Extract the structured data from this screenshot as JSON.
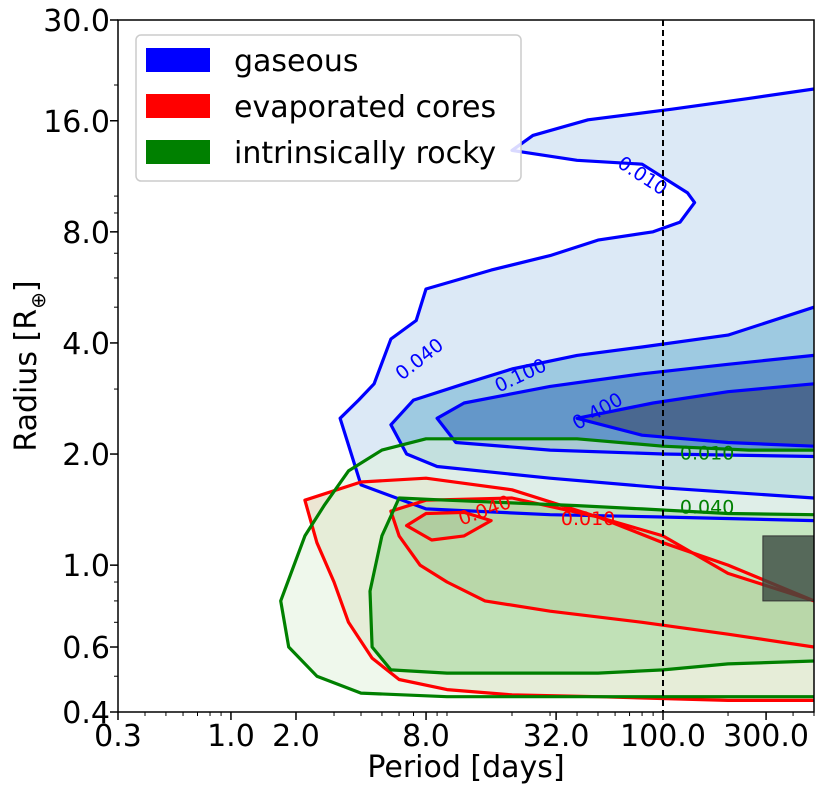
{
  "chart_data": {
    "type": "contour",
    "title": "",
    "xlabel": "Period [days]",
    "ylabel": "Radius [R",
    "ylabel_subscript": "⊕",
    "ylabel_close": "]",
    "xscale": "log",
    "yscale": "log",
    "xlim": [
      0.3,
      500.0
    ],
    "ylim": [
      0.4,
      30.0
    ],
    "xticks": [
      {
        "value": 0.3,
        "label": "0.3"
      },
      {
        "value": 1.0,
        "label": "1.0"
      },
      {
        "value": 2.0,
        "label": "2.0"
      },
      {
        "value": 8.0,
        "label": "8.0"
      },
      {
        "value": 32.0,
        "label": "32.0"
      },
      {
        "value": 100.0,
        "label": "100.0"
      },
      {
        "value": 300.0,
        "label": "300.0"
      }
    ],
    "yticks": [
      {
        "value": 0.4,
        "label": "0.4"
      },
      {
        "value": 0.6,
        "label": "0.6"
      },
      {
        "value": 1.0,
        "label": "1.0"
      },
      {
        "value": 2.0,
        "label": "2.0"
      },
      {
        "value": 4.0,
        "label": "4.0"
      },
      {
        "value": 8.0,
        "label": "8.0"
      },
      {
        "value": 16.0,
        "label": "16.0"
      },
      {
        "value": 30.0,
        "label": "30.0"
      }
    ],
    "vline": {
      "x": 100.0,
      "style": "dashed"
    },
    "shaded_box": {
      "x": [
        290,
        500
      ],
      "y": [
        0.8,
        1.2
      ]
    },
    "legend": {
      "position": "top-left",
      "entries": [
        {
          "label": "gaseous",
          "color": "#0000ff"
        },
        {
          "label": "evaporated cores",
          "color": "#ff0000"
        },
        {
          "label": "intrinsically rocky",
          "color": "#008000"
        }
      ]
    },
    "levels": [
      0.01,
      0.04,
      0.1,
      0.4
    ],
    "series": [
      {
        "name": "gaseous",
        "line_color": "#0000ff",
        "fills": [
          "#dce9f6",
          "#9ecae1",
          "#6497c9",
          "#4a6890"
        ],
        "contours": [
          {
            "level": "0.010",
            "label_x": 80,
            "label_y": 11.3,
            "label_angle": 33,
            "points": [
              [
                500,
                19.5
              ],
              [
                250,
                18.4
              ],
              [
                110,
                17.2
              ],
              [
                45,
                16.1
              ],
              [
                25,
                14.6
              ],
              [
                20,
                13.3
              ],
              [
                40,
                12.5
              ],
              [
                80,
                12.2
              ],
              [
                130,
                10.2
              ],
              [
                140,
                9.6
              ],
              [
                120,
                8.5
              ],
              [
                90,
                8.0
              ],
              [
                50,
                7.6
              ],
              [
                30,
                6.9
              ],
              [
                16,
                6.3
              ],
              [
                8,
                5.6
              ],
              [
                7.2,
                4.6
              ],
              [
                5.5,
                4.1
              ],
              [
                4.6,
                3.1
              ],
              [
                3.9,
                2.8
              ],
              [
                3.2,
                2.5
              ],
              [
                4.0,
                1.65
              ],
              [
                8,
                1.42
              ],
              [
                30,
                1.37
              ],
              [
                100,
                1.35
              ],
              [
                500,
                1.32
              ]
            ]
          },
          {
            "level": "0.040",
            "label_x": 7.5,
            "label_y": 3.6,
            "label_angle": -38,
            "points": [
              [
                500,
                5.0
              ],
              [
                200,
                4.2
              ],
              [
                80,
                3.9
              ],
              [
                40,
                3.7
              ],
              [
                20,
                3.4
              ],
              [
                12,
                3.1
              ],
              [
                7,
                2.8
              ],
              [
                5.5,
                2.4
              ],
              [
                6.5,
                2.0
              ],
              [
                9,
                1.85
              ],
              [
                30,
                1.72
              ],
              [
                100,
                1.62
              ],
              [
                500,
                1.52
              ]
            ]
          },
          {
            "level": "0.100",
            "label_x": 22,
            "label_y": 3.25,
            "label_angle": -25,
            "points": [
              [
                500,
                3.7
              ],
              [
                200,
                3.5
              ],
              [
                80,
                3.3
              ],
              [
                30,
                3.05
              ],
              [
                12,
                2.75
              ],
              [
                9,
                2.5
              ],
              [
                11,
                2.15
              ],
              [
                30,
                2.05
              ],
              [
                100,
                2.0
              ],
              [
                500,
                1.97
              ]
            ]
          },
          {
            "level": "0.400",
            "label_x": 50,
            "label_y": 2.6,
            "label_angle": -30,
            "points": [
              [
                500,
                3.1
              ],
              [
                200,
                2.95
              ],
              [
                90,
                2.75
              ],
              [
                40,
                2.5
              ],
              [
                80,
                2.25
              ],
              [
                200,
                2.15
              ],
              [
                500,
                2.1
              ]
            ]
          }
        ]
      },
      {
        "name": "evaporated cores",
        "line_color": "#ff0000",
        "fills": [
          "#e6dec4",
          "#b8a676",
          "#8b7456"
        ],
        "contours": [
          {
            "level": "0.010",
            "label_x": 45,
            "label_y": 1.33,
            "label_angle": 0,
            "points": [
              [
                500,
                0.43
              ],
              [
                200,
                0.43
              ],
              [
                50,
                0.44
              ],
              [
                20,
                0.445
              ],
              [
                10,
                0.46
              ],
              [
                6,
                0.49
              ],
              [
                4.5,
                0.56
              ],
              [
                3.5,
                0.7
              ],
              [
                3,
                0.9
              ],
              [
                2.5,
                1.15
              ],
              [
                2.2,
                1.5
              ],
              [
                4,
                1.68
              ],
              [
                8,
                1.72
              ],
              [
                20,
                1.6
              ],
              [
                50,
                1.35
              ],
              [
                100,
                1.15
              ],
              [
                200,
                1.0
              ],
              [
                500,
                0.8
              ]
            ]
          },
          {
            "level": "0.040",
            "label_x": 15,
            "label_y": 1.4,
            "label_angle": -20,
            "points": [
              [
                500,
                0.6
              ],
              [
                200,
                0.65
              ],
              [
                80,
                0.7
              ],
              [
                30,
                0.75
              ],
              [
                15,
                0.8
              ],
              [
                10,
                0.9
              ],
              [
                7.5,
                1.0
              ],
              [
                6,
                1.2
              ],
              [
                5.5,
                1.4
              ],
              [
                8,
                1.5
              ],
              [
                20,
                1.52
              ],
              [
                50,
                1.35
              ],
              [
                100,
                1.2
              ],
              [
                200,
                0.95
              ],
              [
                500,
                0.8
              ]
            ]
          },
          {
            "level": "0.100",
            "label_x": 0,
            "label_y": 0,
            "label_angle": 0,
            "points": [
              [
                6.5,
                1.28
              ],
              [
                8,
                1.38
              ],
              [
                12,
                1.39
              ],
              [
                16,
                1.32
              ],
              [
                12,
                1.2
              ],
              [
                8.5,
                1.17
              ],
              [
                6.5,
                1.28
              ]
            ]
          }
        ]
      },
      {
        "name": "intrinsically rocky",
        "line_color": "#008000",
        "fills": [
          "#e2f2dc",
          "#a2d79d",
          "#69b066"
        ],
        "contours": [
          {
            "level": "0.010",
            "label_x": 160,
            "label_y": 2.0,
            "label_angle": 0,
            "points": [
              [
                500,
                2.05
              ],
              [
                250,
                2.05
              ],
              [
                100,
                2.1
              ],
              [
                40,
                2.2
              ],
              [
                15,
                2.2
              ],
              [
                8,
                2.2
              ],
              [
                5,
                2.05
              ],
              [
                3.5,
                1.8
              ],
              [
                2.7,
                1.45
              ],
              [
                2.2,
                1.2
              ],
              [
                1.7,
                0.8
              ],
              [
                1.85,
                0.6
              ],
              [
                2.5,
                0.5
              ],
              [
                4,
                0.45
              ],
              [
                10,
                0.44
              ],
              [
                50,
                0.44
              ],
              [
                100,
                0.44
              ],
              [
                500,
                0.44
              ]
            ]
          },
          {
            "level": "0.040",
            "label_x": 160,
            "label_y": 1.43,
            "label_angle": 0,
            "points": [
              [
                500,
                1.37
              ],
              [
                200,
                1.38
              ],
              [
                80,
                1.42
              ],
              [
                40,
                1.45
              ],
              [
                10,
                1.5
              ],
              [
                6,
                1.52
              ],
              [
                5,
                1.2
              ],
              [
                4.4,
                0.85
              ],
              [
                4.5,
                0.6
              ],
              [
                5.5,
                0.52
              ],
              [
                10,
                0.51
              ],
              [
                50,
                0.51
              ],
              [
                100,
                0.52
              ],
              [
                200,
                0.54
              ],
              [
                500,
                0.55
              ]
            ]
          }
        ]
      }
    ]
  }
}
